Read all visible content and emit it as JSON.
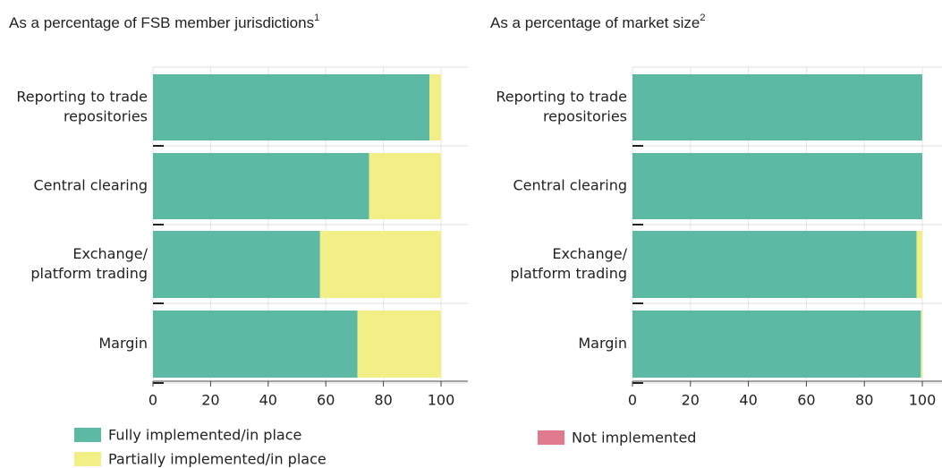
{
  "chart_data": [
    {
      "type": "stacked-barh",
      "title": "As a percentage of FSB member jurisdictions",
      "title_note": "1",
      "categories": [
        [
          "Reporting to trade",
          "repositories"
        ],
        [
          "Central clearing"
        ],
        [
          "Exchange/",
          "platform trading"
        ],
        [
          "Margin"
        ]
      ],
      "series": [
        {
          "name": "Fully implemented/in place",
          "color": "#5cb9a3",
          "values": [
            96,
            75,
            58,
            71
          ]
        },
        {
          "name": "Partially implemented/in place",
          "color": "#f1ef86",
          "values": [
            4,
            25,
            42,
            29
          ]
        }
      ],
      "xlim": [
        0,
        100
      ],
      "xticks": [
        0,
        20,
        40,
        60,
        80,
        100
      ],
      "grid": true
    },
    {
      "type": "stacked-barh",
      "title": "As a percentage of market size",
      "title_note": "2",
      "categories": [
        [
          "Reporting to trade",
          "repositories"
        ],
        [
          "Central clearing"
        ],
        [
          "Exchange/",
          "platform trading"
        ],
        [
          "Margin"
        ]
      ],
      "series": [
        {
          "name": "Fully implemented/in place",
          "color": "#5cb9a3",
          "values": [
            100,
            100,
            98,
            99.5
          ]
        },
        {
          "name": "Partially implemented/in place",
          "color": "#f1ef86",
          "values": [
            0,
            0,
            2,
            0.5
          ]
        },
        {
          "name": "Not implemented",
          "color": "#e07b8f",
          "values": [
            0,
            0,
            0,
            0
          ]
        }
      ],
      "xlim": [
        0,
        100
      ],
      "xticks": [
        0,
        20,
        40,
        60,
        80,
        100
      ],
      "grid": true
    }
  ]
}
